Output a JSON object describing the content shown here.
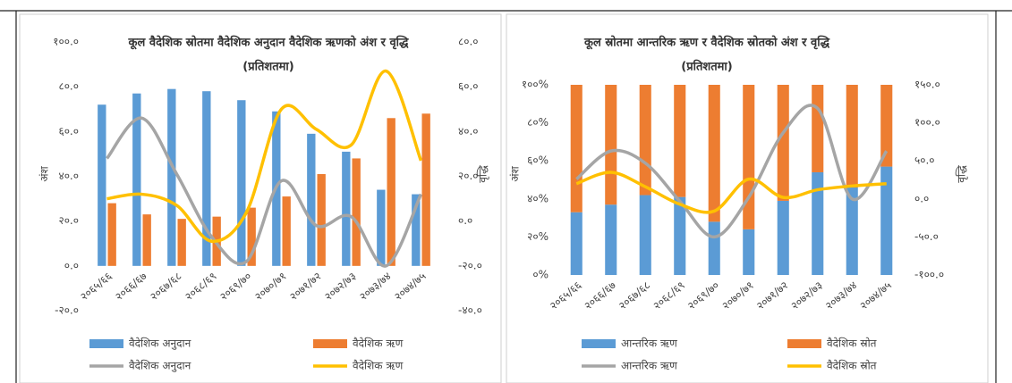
{
  "chart_data": [
    {
      "type": "combo",
      "title": "कूल वैदेशिक स्रोतमा वैदेशिक अनुदान वैदेशिक ऋणको अंश र वृद्धि",
      "subtitle": "(प्रतिशतमा)",
      "ylabel": "अंश",
      "y2label": "वृद्धि",
      "stacked": false,
      "categories": [
        "२०६५/६६",
        "२०६६/६७",
        "२०६७/६८",
        "२०६८/६९",
        "२०६९/७०",
        "२०७०/७१",
        "२०७१/७२",
        "२०७२/७३",
        "२०७३/७४",
        "२०७४/७५"
      ],
      "ylim": [
        -20,
        100
      ],
      "yticks": [
        {
          "value": -20,
          "label": "-२०.०"
        },
        {
          "value": 0,
          "label": "०.०"
        },
        {
          "value": 20,
          "label": "२०.०"
        },
        {
          "value": 40,
          "label": "४०.०"
        },
        {
          "value": 60,
          "label": "६०.०"
        },
        {
          "value": 80,
          "label": "८०.०"
        },
        {
          "value": 100,
          "label": "१००.०"
        }
      ],
      "y2lim": [
        -40,
        80
      ],
      "y2ticks": [
        {
          "value": -40,
          "label": "-४०.०"
        },
        {
          "value": -20,
          "label": "-२०.०"
        },
        {
          "value": 0,
          "label": "०.०"
        },
        {
          "value": 20,
          "label": "२०.०"
        },
        {
          "value": 40,
          "label": "४०.०"
        },
        {
          "value": 60,
          "label": "६०.०"
        },
        {
          "value": 80,
          "label": "८०.०"
        }
      ],
      "series": [
        {
          "name": "वैदेशिक अनुदान",
          "mark": "bar",
          "color": "#5b9bd5",
          "values": [
            72,
            77,
            79,
            78,
            74,
            69,
            59,
            51,
            34,
            32
          ]
        },
        {
          "name": "वैदेशिक ऋण",
          "mark": "bar",
          "color": "#ed7d31",
          "values": [
            28,
            23,
            21,
            22,
            26,
            31,
            41,
            48,
            66,
            68
          ]
        },
        {
          "name": "वैदेशिक अनुदान",
          "mark": "line",
          "axis": "y2",
          "color": "#a5a5a5",
          "values": [
            28,
            46,
            21,
            -7,
            -18,
            18,
            -2,
            2,
            -20,
            12
          ]
        },
        {
          "name": "वैदेशिक ऋण",
          "mark": "line",
          "axis": "y2",
          "color": "#ffc000",
          "values": [
            10,
            12,
            7,
            -9,
            4,
            50,
            41,
            34,
            67,
            27
          ]
        }
      ]
    },
    {
      "type": "combo",
      "title": "कूल स्रोतमा आन्तरिक ऋण र वैदेशिक स्रोतको अंश र वृद्धि",
      "subtitle": "(प्रतिशतमा)",
      "ylabel": "अंश",
      "y2label": "वृद्धि",
      "stacked": true,
      "categories": [
        "२०६५/६६",
        "२०६६/६७",
        "२०६७/६८",
        "२०६८/६९",
        "२०६९/७०",
        "२०७०/७१",
        "२०७१/७२",
        "२०७२/७३",
        "२०७३/७४",
        "२०७४/७५"
      ],
      "ylim": [
        0,
        100
      ],
      "yticks": [
        {
          "value": 0,
          "label": "०%"
        },
        {
          "value": 20,
          "label": "२०%"
        },
        {
          "value": 40,
          "label": "४०%"
        },
        {
          "value": 60,
          "label": "६०%"
        },
        {
          "value": 80,
          "label": "८०%"
        },
        {
          "value": 100,
          "label": "१००%"
        }
      ],
      "y2lim": [
        -100,
        150
      ],
      "y2ticks": [
        {
          "value": -100,
          "label": "-१००.०"
        },
        {
          "value": -50,
          "label": "-५०.०"
        },
        {
          "value": 0,
          "label": "०.०"
        },
        {
          "value": 50,
          "label": "५०.०"
        },
        {
          "value": 100,
          "label": "१००.०"
        },
        {
          "value": 150,
          "label": "१५०.०"
        }
      ],
      "series": [
        {
          "name": "आन्तरिक ऋण",
          "mark": "bar",
          "color": "#5b9bd5",
          "values": [
            33,
            37,
            42,
            41,
            28,
            24,
            39,
            54,
            46,
            57
          ]
        },
        {
          "name": "वैदेशिक स्रोत",
          "mark": "bar",
          "color": "#ed7d31",
          "values": [
            67,
            63,
            58,
            59,
            72,
            76,
            61,
            46,
            54,
            43
          ]
        },
        {
          "name": "आन्तरिक ऋण",
          "mark": "line",
          "axis": "y2",
          "color": "#a5a5a5",
          "values": [
            26,
            63,
            47,
            -3,
            -50,
            2,
            87,
            119,
            0,
            63
          ]
        },
        {
          "name": "वैदेशिक स्रोत",
          "mark": "line",
          "axis": "y2",
          "color": "#ffc000",
          "values": [
            20,
            35,
            16,
            -7,
            -16,
            26,
            2,
            12,
            17,
            20
          ]
        }
      ]
    }
  ]
}
